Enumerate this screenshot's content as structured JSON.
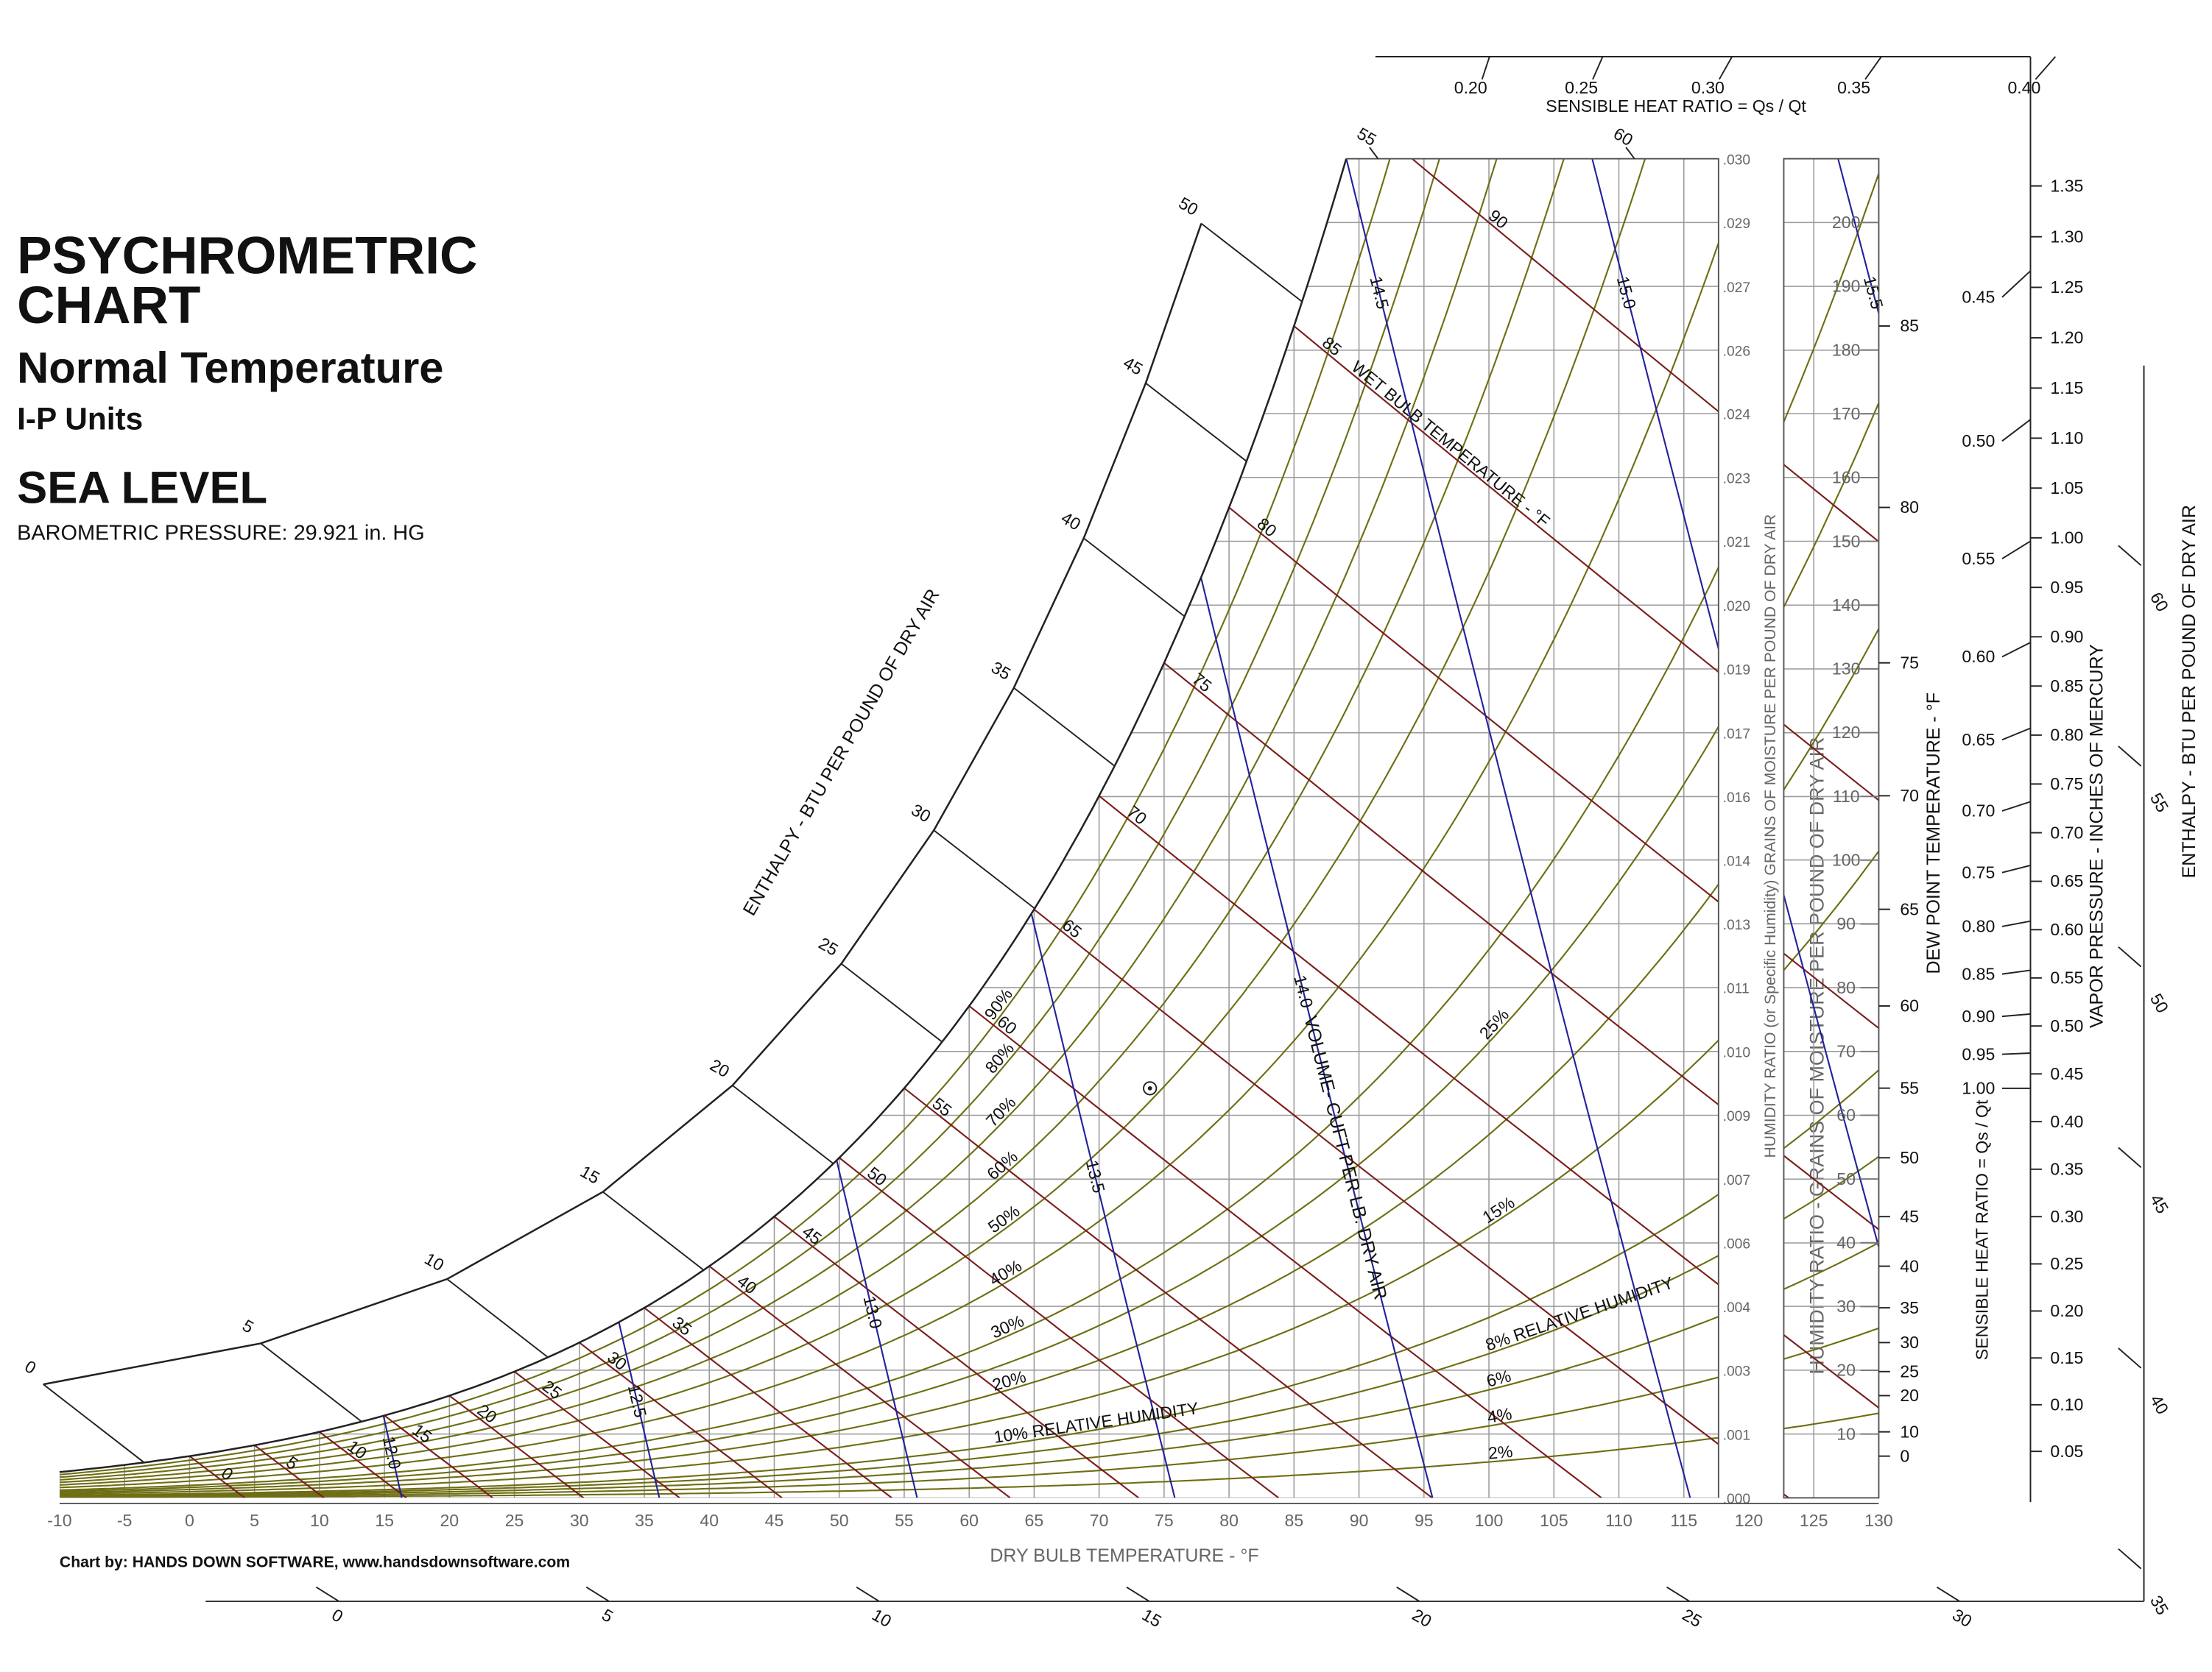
{
  "chart_data": {
    "type": "psychrometric",
    "title": [
      "PSYCHROMETRIC",
      "CHART"
    ],
    "subtitle": "Normal Temperature",
    "units": "I-P Units",
    "altitude": "SEA LEVEL",
    "pressure_text": "BAROMETRIC PRESSURE: 29.921 in. HG",
    "pressure": 29.921,
    "credit": "Chart by: HANDS DOWN SOFTWARE, www.handsdownsoftware.com",
    "x_label": "DRY BULB TEMPERATURE - °F",
    "xlim": [
      -10,
      130
    ],
    "xticks": [
      -10,
      -5,
      0,
      5,
      10,
      15,
      20,
      25,
      30,
      35,
      40,
      45,
      50,
      55,
      60,
      65,
      70,
      75,
      80,
      85,
      90,
      95,
      100,
      105,
      110,
      115,
      120,
      125,
      130
    ],
    "y_label": "HUMIDITY RATIO (or Specific Humidity) GRAINS OF MOISTURE PER POUND OF DRY AIR",
    "ylim": [
      0,
      0.03
    ],
    "yticks": [
      {
        "value": 0,
        "label": ".000"
      },
      {
        "value": 0.00143,
        "label": ".001"
      },
      {
        "value": 0.00286,
        "label": ".003"
      },
      {
        "value": 0.00429,
        "label": ".004"
      },
      {
        "value": 0.00571,
        "label": ".006"
      },
      {
        "value": 0.00714,
        "label": ".007"
      },
      {
        "value": 0.00857,
        "label": ".009"
      },
      {
        "value": 0.01,
        "label": ".010"
      },
      {
        "value": 0.01143,
        "label": ".011"
      },
      {
        "value": 0.01286,
        "label": ".013"
      },
      {
        "value": 0.01429,
        "label": ".014"
      },
      {
        "value": 0.01571,
        "label": ".016"
      },
      {
        "value": 0.01714,
        "label": ".017"
      },
      {
        "value": 0.01857,
        "label": ".019"
      },
      {
        "value": 0.02,
        "label": ".020"
      },
      {
        "value": 0.02143,
        "label": ".021"
      },
      {
        "value": 0.02286,
        "label": ".023"
      },
      {
        "value": 0.02429,
        "label": ".024"
      },
      {
        "value": 0.02571,
        "label": ".026"
      },
      {
        "value": 0.02714,
        "label": ".027"
      },
      {
        "value": 0.02857,
        "label": ".029"
      },
      {
        "value": 0.03,
        "label": ".030"
      }
    ],
    "grid": true,
    "grid_color": "#9a9a9a",
    "grains": {
      "label": "HUMIDITY RATIO - GRAINS OF MOISTURE PER POUND OF DRY AIR",
      "ticks": [
        10,
        20,
        30,
        40,
        50,
        60,
        70,
        80,
        90,
        100,
        110,
        120,
        130,
        140,
        150,
        160,
        170,
        180,
        190,
        200
      ]
    },
    "dew_point": {
      "label": "DEW POINT TEMPERATURE - °F",
      "ticks": [
        0,
        10,
        20,
        25,
        30,
        35,
        40,
        45,
        50,
        55,
        60,
        65,
        70,
        75,
        80,
        85
      ]
    },
    "vapor_pressure": {
      "label": "VAPOR PRESSURE - INCHES OF MERCURY",
      "ticks": [
        0.05,
        {
          "value": 0.1,
          "label": "0.10"
        },
        0.15,
        {
          "value": 0.2,
          "label": "0.20"
        },
        0.25,
        {
          "value": 0.3,
          "label": "0.30"
        },
        0.35,
        {
          "value": 0.4,
          "label": "0.40"
        },
        0.45,
        {
          "value": 0.5,
          "label": "0.50"
        },
        0.55,
        {
          "value": 0.6,
          "label": "0.60"
        },
        0.65,
        {
          "value": 0.7,
          "label": "0.70"
        },
        0.75,
        {
          "value": 0.8,
          "label": "0.80"
        },
        0.85,
        {
          "value": 0.9,
          "label": "0.90"
        },
        0.95,
        {
          "value": 1,
          "label": "1.00"
        },
        1.05,
        {
          "value": 1.1,
          "label": "1.10"
        },
        1.15,
        {
          "value": 1.2,
          "label": "1.20"
        },
        1.25,
        {
          "value": 1.3,
          "label": "1.30"
        },
        1.35
      ]
    },
    "sensible_heat_ratio": {
      "label": "SENSIBLE HEAT RATIO = Qs / Qt",
      "top_ticks": [
        {
          "value": 0.2,
          "label": "0.20"
        },
        0.25,
        {
          "value": 0.3,
          "label": "0.30"
        },
        0.35,
        {
          "value": 0.4,
          "label": "0.40"
        }
      ],
      "right_ticks": [
        0.45,
        {
          "value": 0.5,
          "label": "0.50"
        },
        0.55,
        {
          "value": 0.6,
          "label": "0.60"
        },
        0.65,
        {
          "value": 0.7,
          "label": "0.70"
        },
        0.75,
        {
          "value": 0.8,
          "label": "0.80"
        },
        0.85,
        {
          "value": 0.9,
          "label": "0.90"
        },
        0.95,
        {
          "value": 1,
          "label": "1.00"
        }
      ]
    },
    "enthalpy": {
      "label": "ENTHALPY - BTU PER POUND OF DRY AIR",
      "ticks": [
        0,
        5,
        10,
        15,
        20,
        25,
        30,
        35,
        40,
        45,
        50,
        55,
        60
      ],
      "right_ticks": [
        35,
        40,
        45,
        50,
        55,
        60
      ],
      "bottom_ticks": [
        0,
        5,
        10,
        15,
        20,
        25,
        30
      ]
    },
    "relative_humidity": {
      "color": "#6e6e14",
      "values": [
        2,
        4,
        6,
        8,
        10,
        15,
        20,
        25,
        30,
        40,
        50,
        60,
        70,
        80,
        90
      ],
      "value_labels": [
        "2%",
        "4%",
        "6%",
        "8% RELATIVE HUMIDITY",
        "10% RELATIVE HUMIDITY",
        "15%",
        "20%",
        "25%",
        "30%",
        "40%",
        "50%",
        "60%",
        "70%",
        "80%",
        "90%"
      ]
    },
    "wet_bulb": {
      "label": "WET BULB TEMPERATURE - °F",
      "color": "#7b1d1d",
      "values": [
        0,
        5,
        10,
        15,
        20,
        25,
        30,
        35,
        40,
        45,
        50,
        55,
        60,
        65,
        70,
        75,
        80,
        85,
        90
      ]
    },
    "volume": {
      "label": "VOLUME- CUFT PER LB. DRY AIR",
      "color": "#22229a",
      "values": [
        12,
        12.5,
        13,
        13.5,
        14,
        14.5,
        15,
        15.5
      ],
      "value_labels": [
        "12.0",
        "12.5",
        "13.0",
        "13.5",
        "14.0",
        "14.5",
        "15.0",
        "15.5"
      ]
    }
  }
}
